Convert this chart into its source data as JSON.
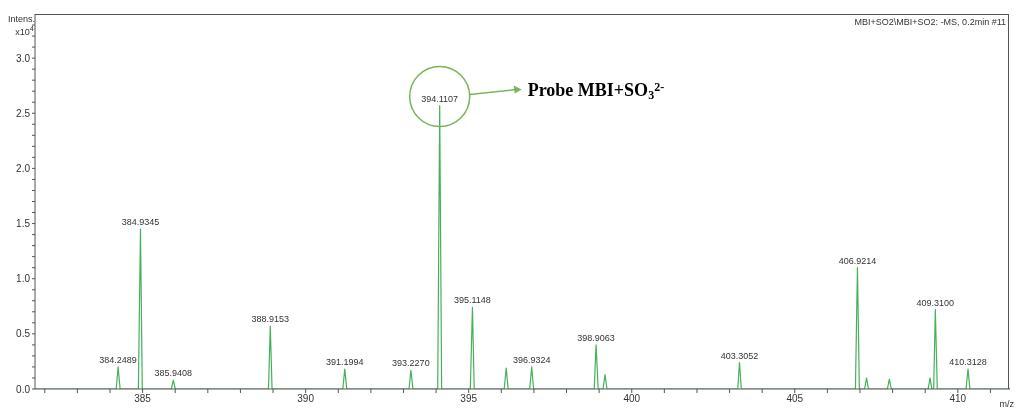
{
  "chart_data": {
    "type": "line",
    "ylabel": "Intens. x10$^{4}$",
    "xlabel": "m/z",
    "xlim": [
      381.7,
      411.6
    ],
    "xticks": [
      {
        "value": 382,
        "label": null
      },
      {
        "value": 383,
        "label": null
      },
      {
        "value": 384,
        "label": null
      },
      385,
      {
        "value": 386,
        "label": null
      },
      {
        "value": 387,
        "label": null
      },
      {
        "value": 388,
        "label": null
      },
      {
        "value": 389,
        "label": null
      },
      390,
      {
        "value": 391,
        "label": null
      },
      {
        "value": 392,
        "label": null
      },
      {
        "value": 393,
        "label": null
      },
      {
        "value": 394,
        "label": null
      },
      395,
      {
        "value": 396,
        "label": null
      },
      {
        "value": 397,
        "label": null
      },
      {
        "value": 398,
        "label": null
      },
      {
        "value": 399,
        "label": null
      },
      400,
      {
        "value": 401,
        "label": null
      },
      {
        "value": 402,
        "label": null
      },
      {
        "value": 403,
        "label": null
      },
      {
        "value": 404,
        "label": null
      },
      405,
      {
        "value": 406,
        "label": null
      },
      {
        "value": 407,
        "label": null
      },
      {
        "value": 408,
        "label": null
      },
      {
        "value": 409,
        "label": null
      },
      410,
      {
        "value": 411,
        "label": null
      }
    ],
    "ylim": [
      0,
      3.4
    ],
    "yticks": [
      {
        "value": 0,
        "label": "0.0"
      },
      {
        "value": 0.1,
        "label": null
      },
      {
        "value": 0.2,
        "label": null
      },
      {
        "value": 0.3,
        "label": null
      },
      {
        "value": 0.4,
        "label": null
      },
      {
        "value": 0.5,
        "label": "0.5"
      },
      {
        "value": 0.6,
        "label": null
      },
      {
        "value": 0.7,
        "label": null
      },
      {
        "value": 0.8,
        "label": null
      },
      {
        "value": 0.9,
        "label": null
      },
      {
        "value": 1,
        "label": "1.0"
      },
      {
        "value": 1.1,
        "label": null
      },
      {
        "value": 1.2,
        "label": null
      },
      {
        "value": 1.3,
        "label": null
      },
      {
        "value": 1.4,
        "label": null
      },
      {
        "value": 1.5,
        "label": "1.5"
      },
      {
        "value": 1.6,
        "label": null
      },
      {
        "value": 1.7,
        "label": null
      },
      {
        "value": 1.8,
        "label": null
      },
      {
        "value": 1.9,
        "label": null
      },
      {
        "value": 2,
        "label": "2.0"
      },
      {
        "value": 2.1,
        "label": null
      },
      {
        "value": 2.2,
        "label": null
      },
      {
        "value": 2.3,
        "label": null
      },
      {
        "value": 2.4,
        "label": null
      },
      {
        "value": 2.5,
        "label": "2.5"
      },
      {
        "value": 2.6,
        "label": null
      },
      {
        "value": 2.7,
        "label": null
      },
      {
        "value": 2.8,
        "label": null
      },
      {
        "value": 2.9,
        "label": null
      },
      {
        "value": 3,
        "label": "3.0"
      },
      {
        "value": 3.1,
        "label": null
      },
      {
        "value": 3.2,
        "label": null
      },
      {
        "value": 3.3,
        "label": null
      }
    ],
    "series": [
      {
        "color": "#44b25a",
        "x": [
          381.7,
          384.19,
          384.2489,
          384.31,
          384.87,
          384.9345,
          384.99,
          385.88,
          385.9408,
          386.0,
          388.86,
          388.9153,
          388.97,
          391.14,
          391.1994,
          391.26,
          393.17,
          393.227,
          393.29,
          394.05,
          394.1107,
          394.17,
          395.05,
          395.1148,
          395.17,
          396.09,
          396.15,
          396.21,
          396.87,
          396.9324,
          396.99,
          398.85,
          398.9063,
          398.97,
          399.12,
          399.18,
          399.24,
          403.25,
          403.3052,
          403.36,
          406.86,
          406.9214,
          406.98,
          407.14,
          407.2,
          407.26,
          407.84,
          407.9,
          407.96,
          409.09,
          409.15,
          409.2,
          409.26,
          409.31,
          409.37,
          410.25,
          410.3128,
          410.37,
          411.6
        ],
        "values": [
          0,
          0,
          0.2,
          0,
          0,
          1.45,
          0,
          0,
          0.08,
          0,
          0,
          0.57,
          0,
          0,
          0.18,
          0,
          0,
          0.17,
          0,
          0,
          2.57,
          0,
          0,
          0.74,
          0,
          0,
          0.19,
          0,
          0,
          0.2,
          0,
          0,
          0.4,
          0,
          0,
          0.13,
          0,
          0,
          0.24,
          0,
          0,
          1.1,
          0,
          0,
          0.1,
          0,
          0,
          0.09,
          0,
          0,
          0.1,
          0,
          0,
          0.72,
          0,
          0,
          0.18,
          0,
          0
        ]
      }
    ],
    "grid": false,
    "legend": false,
    "marker": "none",
    "line_style": "solid",
    "annotations": [
      "MBI+SO2\\MBI+SO2: -MS, 0.2min #11",
      "Probe MBI+SO$_{3}$$^{2-}$",
      {
        "text": "384.2489",
        "x": 384.2489,
        "y": 0.2
      },
      {
        "text": "384.9345",
        "x": 384.9345,
        "y": 1.45
      },
      {
        "text": "385.9408",
        "x": 385.9408,
        "y": 0.08
      },
      {
        "text": "388.9153",
        "x": 388.9153,
        "y": 0.57
      },
      {
        "text": "391.1994",
        "x": 391.1994,
        "y": 0.18
      },
      {
        "text": "393.2270",
        "x": 393.227,
        "y": 0.17
      },
      {
        "text": "394.1107",
        "x": 394.1107,
        "y": 2.57
      },
      {
        "text": "395.1148",
        "x": 395.1148,
        "y": 0.74
      },
      {
        "text": "396.9324",
        "x": 396.9324,
        "y": 0.2
      },
      {
        "text": "398.9063",
        "x": 398.9063,
        "y": 0.4
      },
      {
        "text": "403.3052",
        "x": 403.3052,
        "y": 0.24
      },
      {
        "text": "406.9214",
        "x": 406.9214,
        "y": 1.1
      },
      {
        "text": "409.3100",
        "x": 409.31,
        "y": 0.72
      },
      {
        "text": "410.3128",
        "x": 410.3128,
        "y": 0.18
      }
    ]
  }
}
